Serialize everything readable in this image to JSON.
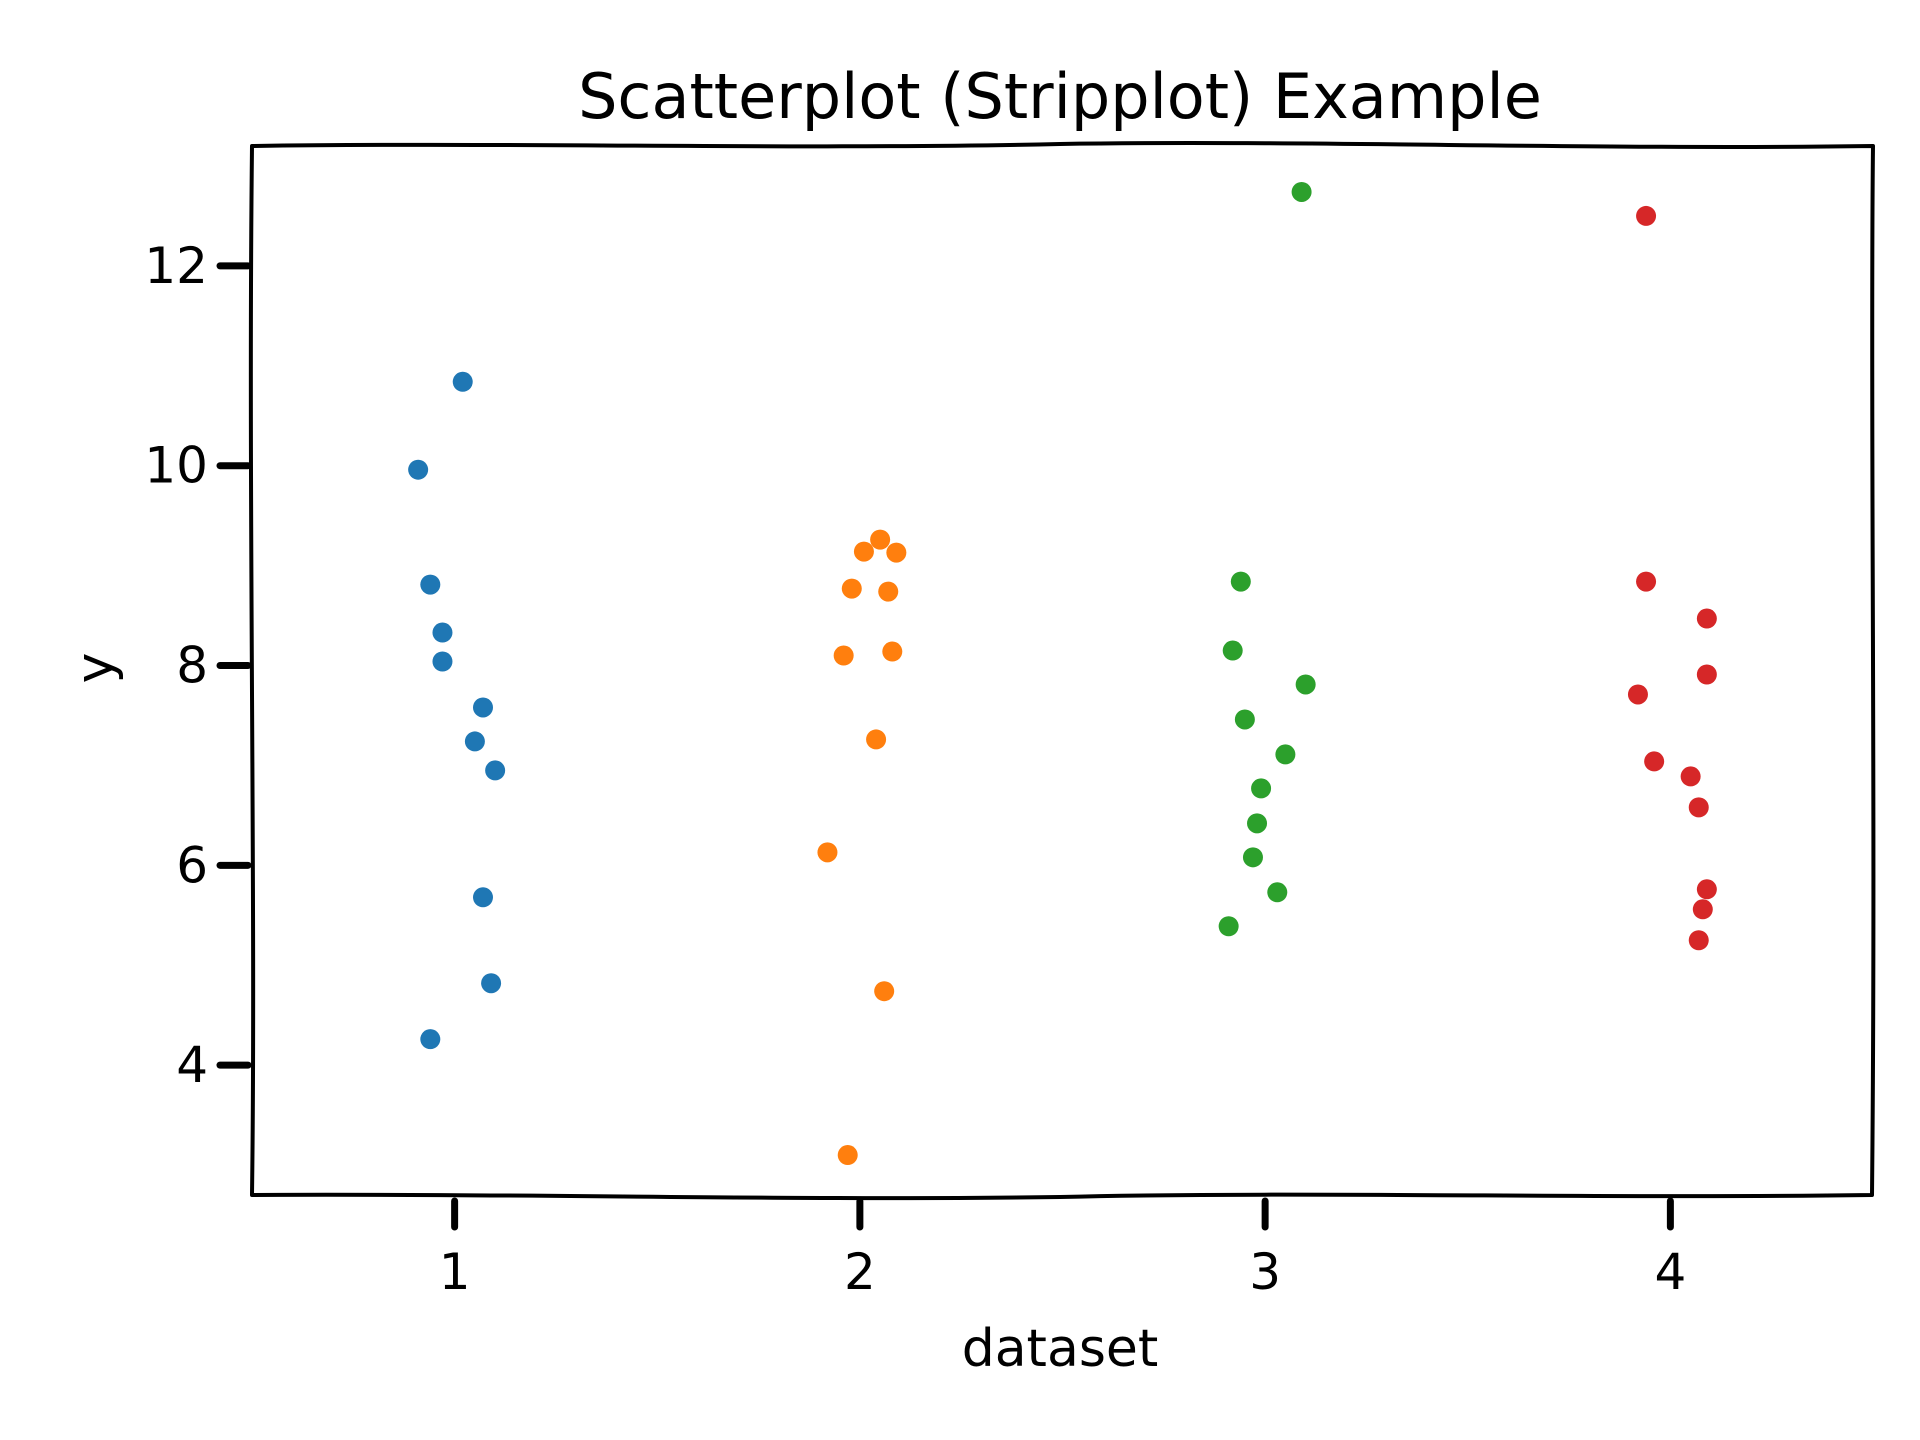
{
  "chart_data": {
    "type": "scatter",
    "title": "Scatterplot (Stripplot) Example",
    "xlabel": "dataset",
    "ylabel": "y",
    "xlim": [
      0.5,
      4.5
    ],
    "ylim": [
      2.7,
      13.2
    ],
    "x_ticks": [
      1,
      2,
      3,
      4
    ],
    "x_tick_labels": [
      "1",
      "2",
      "3",
      "4"
    ],
    "y_ticks": [
      4,
      6,
      8,
      10,
      12
    ],
    "y_tick_labels": [
      "4",
      "6",
      "8",
      "10",
      "12"
    ],
    "grid": false,
    "legend": "none",
    "series": [
      {
        "color": "#1f77b4",
        "points": [
          {
            "x": 0.91,
            "y": 9.96
          },
          {
            "x": 1.02,
            "y": 10.84
          },
          {
            "x": 0.94,
            "y": 8.81
          },
          {
            "x": 0.97,
            "y": 8.33
          },
          {
            "x": 0.97,
            "y": 8.04
          },
          {
            "x": 1.07,
            "y": 7.58
          },
          {
            "x": 1.05,
            "y": 7.24
          },
          {
            "x": 1.1,
            "y": 6.95
          },
          {
            "x": 1.07,
            "y": 5.68
          },
          {
            "x": 1.09,
            "y": 4.82
          },
          {
            "x": 0.94,
            "y": 4.26
          }
        ]
      },
      {
        "color": "#ff7f0e",
        "points": [
          {
            "x": 2.05,
            "y": 9.26
          },
          {
            "x": 2.01,
            "y": 9.14
          },
          {
            "x": 2.09,
            "y": 9.13
          },
          {
            "x": 1.98,
            "y": 8.77
          },
          {
            "x": 2.07,
            "y": 8.74
          },
          {
            "x": 1.96,
            "y": 8.1
          },
          {
            "x": 2.08,
            "y": 8.14
          },
          {
            "x": 2.04,
            "y": 7.26
          },
          {
            "x": 1.92,
            "y": 6.13
          },
          {
            "x": 2.06,
            "y": 4.74
          },
          {
            "x": 1.97,
            "y": 3.1
          }
        ]
      },
      {
        "color": "#2ca02c",
        "points": [
          {
            "x": 3.09,
            "y": 12.74
          },
          {
            "x": 2.94,
            "y": 8.84
          },
          {
            "x": 2.92,
            "y": 8.15
          },
          {
            "x": 3.1,
            "y": 7.81
          },
          {
            "x": 2.95,
            "y": 7.46
          },
          {
            "x": 3.05,
            "y": 7.11
          },
          {
            "x": 2.99,
            "y": 6.77
          },
          {
            "x": 2.98,
            "y": 6.42
          },
          {
            "x": 2.97,
            "y": 6.08
          },
          {
            "x": 3.03,
            "y": 5.73
          },
          {
            "x": 2.91,
            "y": 5.39
          }
        ]
      },
      {
        "color": "#d62728",
        "points": [
          {
            "x": 3.94,
            "y": 12.5
          },
          {
            "x": 3.94,
            "y": 8.84
          },
          {
            "x": 4.09,
            "y": 8.47
          },
          {
            "x": 4.09,
            "y": 7.91
          },
          {
            "x": 3.92,
            "y": 7.71
          },
          {
            "x": 3.96,
            "y": 7.04
          },
          {
            "x": 4.05,
            "y": 6.89
          },
          {
            "x": 4.07,
            "y": 6.58
          },
          {
            "x": 4.09,
            "y": 5.76
          },
          {
            "x": 4.08,
            "y": 5.56
          },
          {
            "x": 4.07,
            "y": 5.25
          }
        ]
      }
    ]
  }
}
